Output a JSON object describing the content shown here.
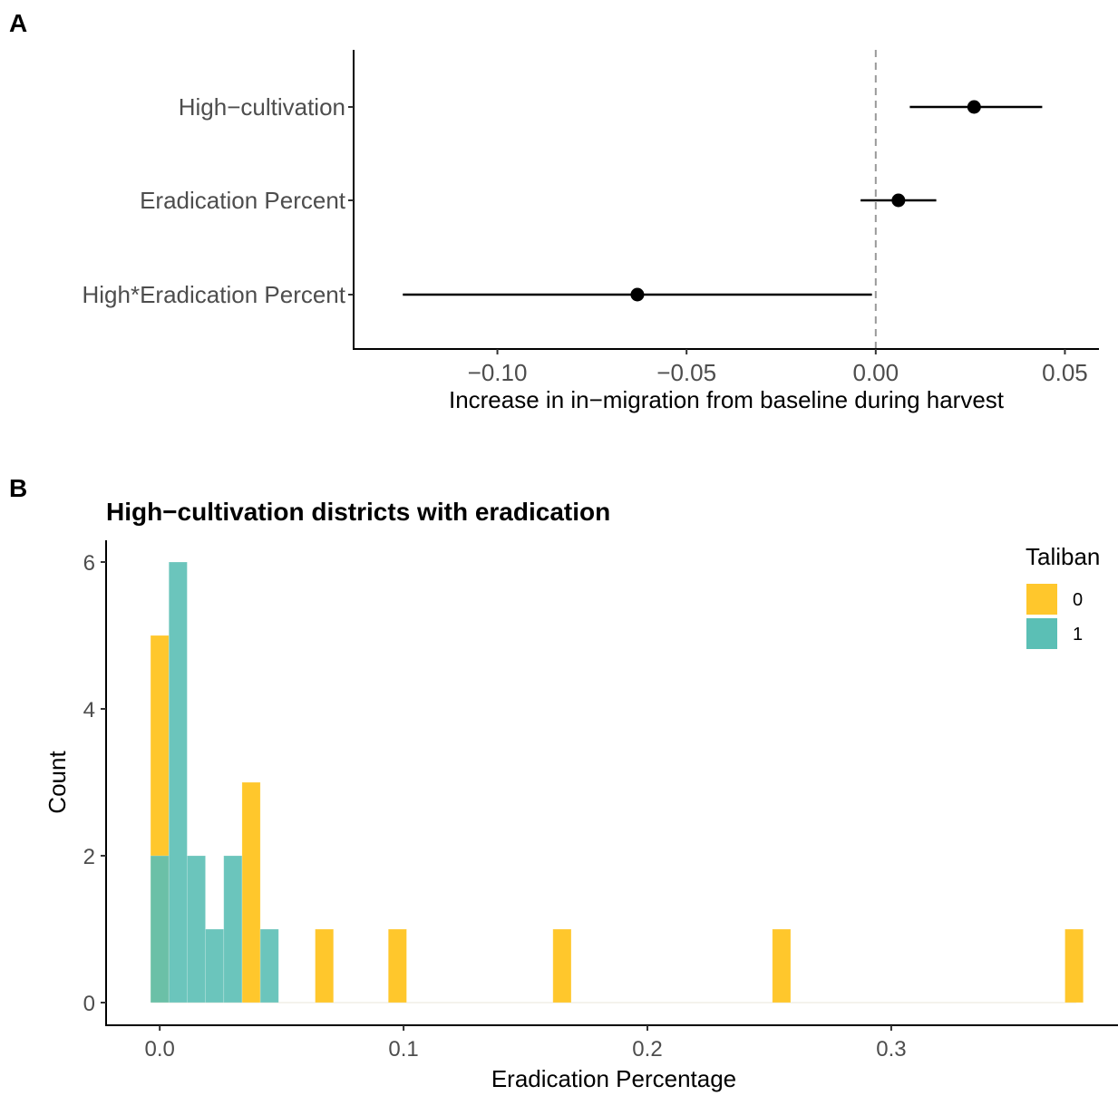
{
  "chart_data": [
    {
      "panel": "A",
      "type": "scatter",
      "subtype": "coefficient-plot",
      "title": "",
      "xlabel": "Increase in in−migration from baseline during harvest",
      "ylabel": "",
      "xlim": [
        -0.138,
        0.059
      ],
      "x_ticks": [
        -0.1,
        -0.05,
        0.0,
        0.05
      ],
      "x_tick_labels": [
        "−0.10",
        "−0.05",
        "0.00",
        "0.05"
      ],
      "reference_line": {
        "x": 0,
        "style": "dashed",
        "color": "#999999"
      },
      "grid": false,
      "categories": [
        "High−cultivation",
        "Eradication Percent",
        "High*Eradication Percent"
      ],
      "estimates": [
        {
          "term": "High−cultivation",
          "estimate": 0.026,
          "low": 0.009,
          "high": 0.044
        },
        {
          "term": "Eradication Percent",
          "estimate": 0.006,
          "low": -0.004,
          "high": 0.016
        },
        {
          "term": "High*Eradication Percent",
          "estimate": -0.063,
          "low": -0.125,
          "high": -0.001
        }
      ]
    },
    {
      "panel": "B",
      "type": "bar",
      "subtype": "histogram",
      "title": "High−cultivation districts with eradication",
      "xlabel": "Eradication Percentage",
      "ylabel": "Count",
      "xlim": [
        -0.022,
        0.393
      ],
      "ylim": [
        0,
        6.3
      ],
      "x_ticks": [
        0.0,
        0.1,
        0.2,
        0.3
      ],
      "x_tick_labels": [
        "0.0",
        "0.1",
        "0.2",
        "0.3"
      ],
      "y_ticks": [
        0,
        2,
        4,
        6
      ],
      "y_tick_labels": [
        "0",
        "2",
        "4",
        "6"
      ],
      "grid": false,
      "bin_width": 0.0075,
      "bin_start": -0.00375,
      "legend": {
        "title": "Taliban",
        "position": "top-right",
        "entries": [
          {
            "label": "0",
            "color": "#FFC72C"
          },
          {
            "label": "1",
            "color": "#5BBFB5"
          }
        ]
      },
      "series": [
        {
          "name": "0",
          "color": "#FFC72C",
          "bins": [
            {
              "bin": 0,
              "count": 5
            },
            {
              "bin": 5,
              "count": 3
            },
            {
              "bin": 9,
              "count": 1
            },
            {
              "bin": 13,
              "count": 1
            },
            {
              "bin": 22,
              "count": 1
            },
            {
              "bin": 34,
              "count": 1
            },
            {
              "bin": 50,
              "count": 1
            }
          ]
        },
        {
          "name": "1",
          "color": "#5BBFB5",
          "bins": [
            {
              "bin": 0,
              "count": 2
            },
            {
              "bin": 1,
              "count": 6
            },
            {
              "bin": 2,
              "count": 2
            },
            {
              "bin": 3,
              "count": 1
            },
            {
              "bin": 4,
              "count": 2
            },
            {
              "bin": 6,
              "count": 1
            }
          ]
        }
      ]
    }
  ],
  "panels": {
    "a_tag": "A",
    "b_tag": "B"
  }
}
